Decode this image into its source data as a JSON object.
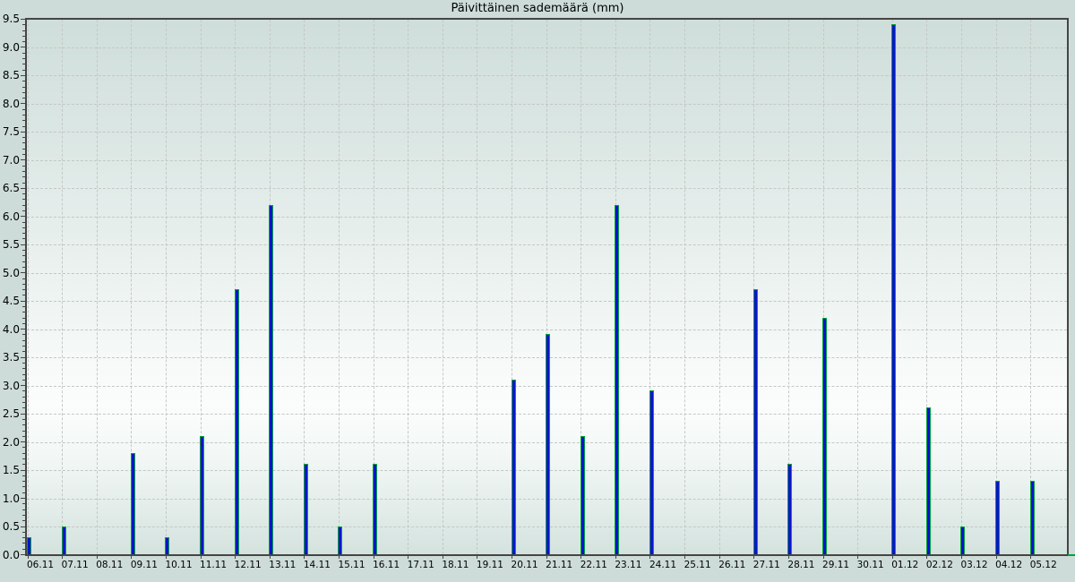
{
  "chart_data": {
    "type": "bar",
    "title": "Päivittäinen sademäärä (mm)",
    "xlabel": "",
    "ylabel": "",
    "categories": [
      "06.11",
      "07.11",
      "08.11",
      "09.11",
      "10.11",
      "11.11",
      "12.11",
      "13.11",
      "14.11",
      "15.11",
      "16.11",
      "17.11",
      "18.11",
      "19.11",
      "20.11",
      "21.11",
      "22.11",
      "23.11",
      "24.11",
      "25.11",
      "26.11",
      "27.11",
      "28.11",
      "29.11",
      "30.11",
      "01.12",
      "02.12",
      "03.12",
      "04.12",
      "05.12"
    ],
    "values": [
      0.3,
      0.5,
      0,
      1.8,
      0.3,
      2.1,
      4.7,
      6.2,
      1.6,
      0.5,
      1.6,
      0,
      0,
      0,
      3.1,
      3.9,
      2.1,
      6.2,
      2.9,
      0,
      0,
      4.7,
      1.6,
      4.2,
      0,
      9.4,
      2.6,
      0.5,
      1.3,
      1.3
    ],
    "ylim": [
      0,
      9.5
    ],
    "ytick_step": 0.5,
    "ytick_labels": [
      "0.0",
      "0.5",
      "1.0",
      "1.5",
      "2.0",
      "2.5",
      "3.0",
      "3.5",
      "4.0",
      "4.5",
      "5.0",
      "5.5",
      "6.0",
      "6.5",
      "7.0",
      "7.5",
      "8.0",
      "8.5",
      "9.0",
      "9.5"
    ],
    "yminor_step": 0.1,
    "grid": "dashed, both axes",
    "legend": "none",
    "colors": {
      "bar_fill": "#0b13ce",
      "bar_edge": "#00a23c",
      "figure_bg": "#cddcd8",
      "plot_gradient_top": "#cfdeda",
      "plot_gradient_light": "#fbfdfc",
      "plot_gradient_bottom": "#d4e2de",
      "gridline": "#c3c8c5",
      "spine": "#454545",
      "text": "#000000"
    }
  }
}
